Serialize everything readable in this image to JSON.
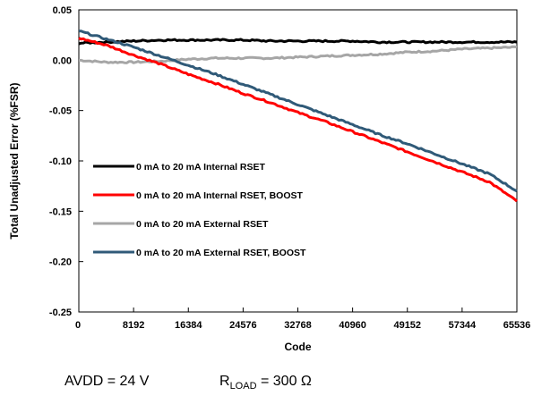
{
  "chart_data": {
    "type": "line",
    "title": "",
    "xlabel": "Code",
    "ylabel": "Total Unadjusted Error (%FSR)",
    "xlim": [
      0,
      65536
    ],
    "ylim": [
      -0.25,
      0.05
    ],
    "xticks": [
      0,
      8192,
      16384,
      24576,
      32768,
      40960,
      49152,
      57344,
      65536
    ],
    "xtick_labels": [
      "0",
      "8192",
      "16384",
      "24576",
      "32768",
      "40960",
      "49152",
      "57344",
      "65536"
    ],
    "yticks": [
      0.05,
      0.0,
      -0.05,
      -0.1,
      -0.15,
      -0.2,
      -0.25
    ],
    "ytick_labels": [
      "0.05",
      "0.00",
      "-0.05",
      "-0.10",
      "-0.15",
      "-0.20",
      "-0.25"
    ],
    "grid": false,
    "legend_position": "center-left",
    "series": [
      {
        "name": "0 mA to 20 mA Internal RSET",
        "color": "#000000",
        "x": [
          0,
          4096,
          8192,
          12288,
          16384,
          20480,
          24576,
          28672,
          32768,
          36864,
          40960,
          45056,
          49152,
          53248,
          57344,
          61440,
          65536
        ],
        "y": [
          0.017,
          0.018,
          0.019,
          0.02,
          0.02,
          0.02,
          0.02,
          0.019,
          0.019,
          0.019,
          0.019,
          0.018,
          0.018,
          0.018,
          0.018,
          0.018,
          0.018
        ]
      },
      {
        "name": "0 mA to 20 mA Internal RSET, BOOST",
        "color": "#ff0000",
        "x": [
          0,
          4096,
          8192,
          12288,
          16384,
          20480,
          24576,
          28672,
          32768,
          36864,
          40960,
          45056,
          49152,
          53248,
          57344,
          61440,
          65536
        ],
        "y": [
          0.022,
          0.015,
          0.005,
          -0.004,
          -0.014,
          -0.023,
          -0.033,
          -0.042,
          -0.052,
          -0.061,
          -0.071,
          -0.081,
          -0.091,
          -0.101,
          -0.111,
          -0.121,
          -0.14
        ]
      },
      {
        "name": "0 mA to 20 mA External RSET",
        "color": "#a6a6a6",
        "x": [
          0,
          4096,
          8192,
          12288,
          16384,
          20480,
          24576,
          28672,
          32768,
          36864,
          40960,
          45056,
          49152,
          53248,
          57344,
          61440,
          65536
        ],
        "y": [
          0.0,
          -0.002,
          -0.002,
          -0.001,
          0.001,
          0.002,
          0.002,
          0.002,
          0.003,
          0.004,
          0.005,
          0.006,
          0.008,
          0.009,
          0.011,
          0.012,
          0.013
        ]
      },
      {
        "name": "0 mA to 20 mA External RSET, BOOST",
        "color": "#305a78",
        "x": [
          0,
          4096,
          8192,
          12288,
          16384,
          20480,
          24576,
          28672,
          32768,
          36864,
          40960,
          45056,
          49152,
          53248,
          57344,
          61440,
          65536
        ],
        "y": [
          0.029,
          0.021,
          0.013,
          0.004,
          -0.005,
          -0.014,
          -0.024,
          -0.034,
          -0.044,
          -0.054,
          -0.064,
          -0.074,
          -0.083,
          -0.093,
          -0.103,
          -0.113,
          -0.13
        ]
      }
    ]
  },
  "caption": {
    "avdd": "AVDD = 24 V",
    "rload_prefix": "R",
    "rload_sub": "LOAD",
    "rload_value": " = 300 Ω"
  }
}
